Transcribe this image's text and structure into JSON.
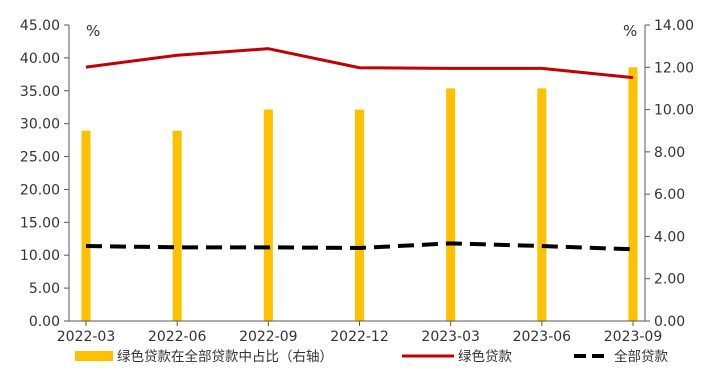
{
  "chart_data": {
    "type": "bar",
    "title": "",
    "xlabel": "",
    "categories": [
      "2022-03",
      "2022-06",
      "2022-09",
      "2022-12",
      "2023-03",
      "2023-06",
      "2023-09"
    ],
    "y_left": {
      "unit": "%",
      "min": 0,
      "max": 45,
      "ticks": [
        "0.00",
        "5.00",
        "10.00",
        "15.00",
        "20.00",
        "25.00",
        "30.00",
        "35.00",
        "40.00",
        "45.00"
      ]
    },
    "y_right": {
      "unit": "%",
      "min": 0,
      "max": 14,
      "ticks": [
        "0.00",
        "2.00",
        "4.00",
        "6.00",
        "8.00",
        "10.00",
        "12.00",
        "14.00"
      ]
    },
    "grid": false,
    "legend_position": "bottom",
    "series": [
      {
        "name": "绿色贷款在全部贷款中占比（右轴）",
        "type": "bar",
        "axis": "right",
        "color": "#FFC000",
        "values": [
          9.0,
          9.0,
          10.0,
          10.0,
          11.0,
          11.0,
          12.0
        ]
      },
      {
        "name": "绿色贷款",
        "type": "line",
        "axis": "left",
        "color": "#C00000",
        "values": [
          38.6,
          40.4,
          41.4,
          38.5,
          38.4,
          38.4,
          37.0
        ]
      },
      {
        "name": "全部贷款",
        "type": "line",
        "dash": true,
        "axis": "left",
        "color": "#000000",
        "values": [
          11.4,
          11.2,
          11.2,
          11.1,
          11.8,
          11.4,
          10.9
        ]
      }
    ]
  }
}
